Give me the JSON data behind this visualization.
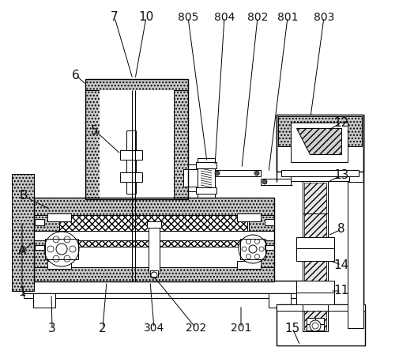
{
  "fig_width": 5.06,
  "fig_height": 4.49,
  "dpi": 100,
  "bg_color": "#ffffff",
  "line_color": "#000000",
  "stipple_color": "#c8c8c8",
  "hatch_color": "#888888"
}
